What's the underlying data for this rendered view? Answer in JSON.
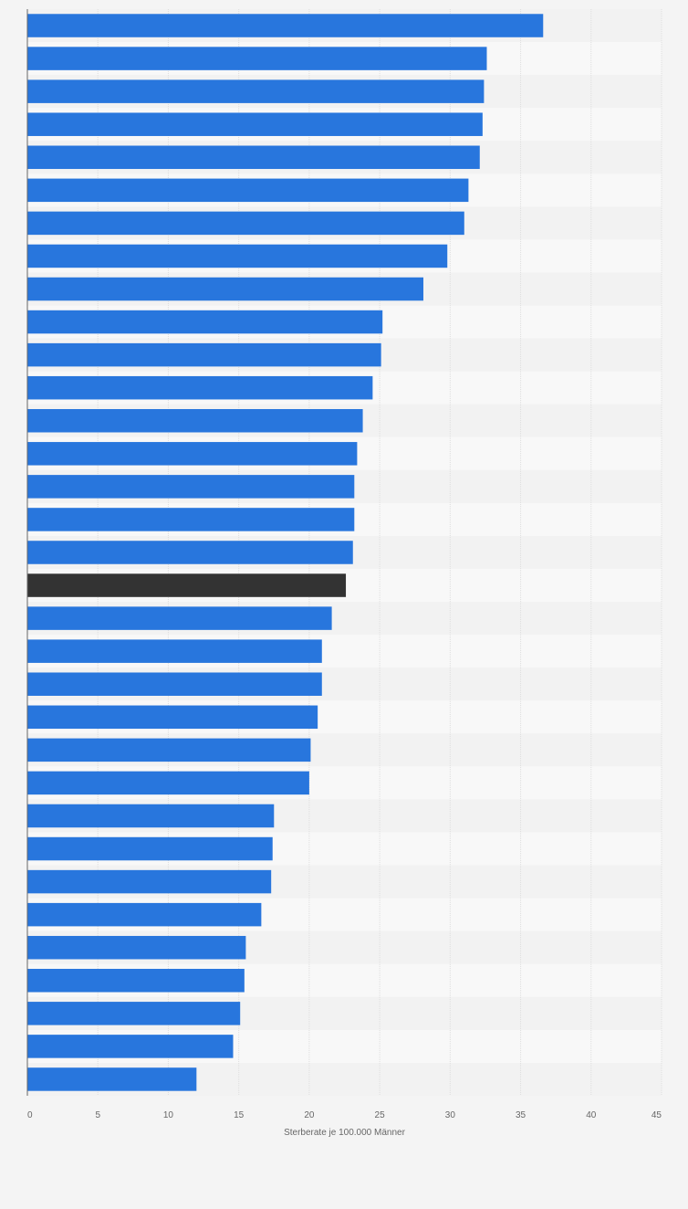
{
  "chart_data": {
    "type": "bar",
    "orientation": "horizontal",
    "xlabel": "Sterberate je 100.000 Männer",
    "xlim": [
      0,
      45
    ],
    "x_ticks": [
      "0",
      "5",
      "10",
      "15",
      "20",
      "25",
      "30",
      "35",
      "40",
      "45"
    ],
    "grid": true,
    "values": [
      36.6,
      32.6,
      32.4,
      32.3,
      32.1,
      31.3,
      31.0,
      29.8,
      28.1,
      25.2,
      25.1,
      24.5,
      23.8,
      23.4,
      23.2,
      23.2,
      23.1,
      22.6,
      21.6,
      20.9,
      20.9,
      20.6,
      20.1,
      20.0,
      17.5,
      17.4,
      17.3,
      16.6,
      15.5,
      15.4,
      15.1,
      14.6,
      12.0
    ],
    "highlight_index": 17,
    "colors": {
      "bar": "#2876dd",
      "highlight": "#333333",
      "background": "#f4f4f4",
      "band_light": "#f8f8f8",
      "band_dark": "#f2f2f2",
      "grid": "#dedede",
      "axis": "#666666",
      "tick_text": "#666666"
    }
  }
}
